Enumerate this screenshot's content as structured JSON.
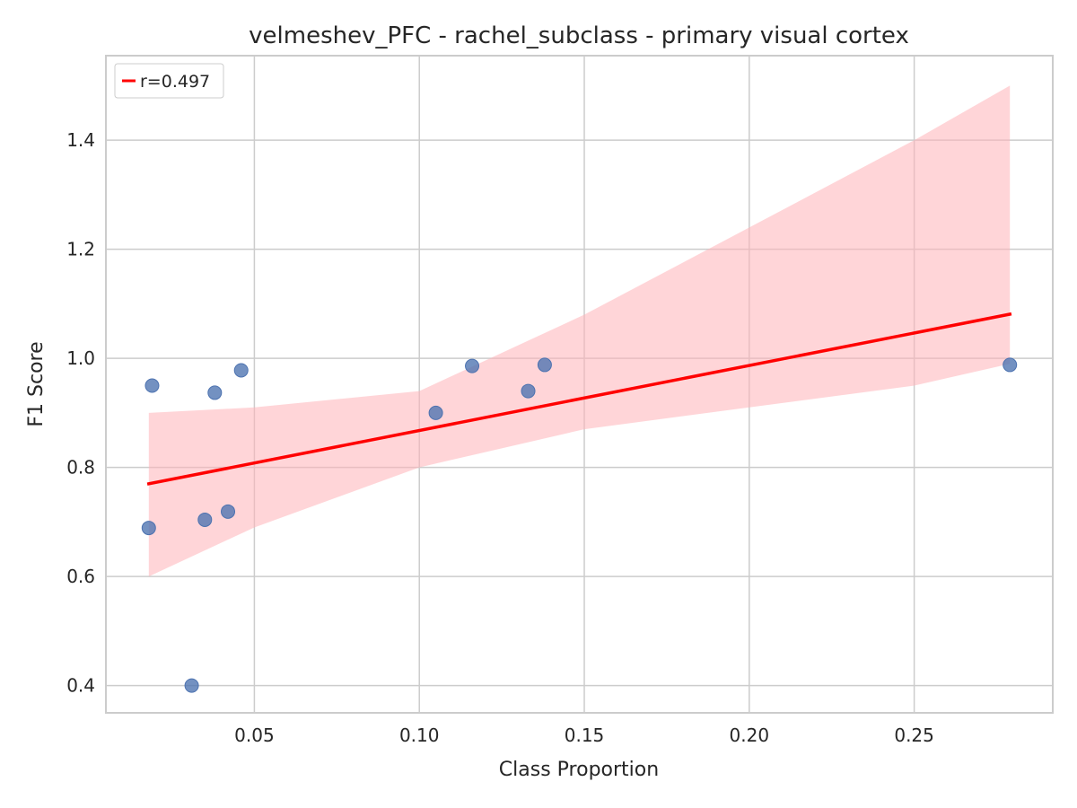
{
  "chart_data": {
    "type": "scatter",
    "title": "velmeshev_PFC - rachel_subclass - primary visual cortex",
    "xlabel": "Class Proportion",
    "ylabel": "F1 Score",
    "xlim": [
      0.005,
      0.292
    ],
    "ylim": [
      0.35,
      1.555
    ],
    "xticks": [
      0.05,
      0.1,
      0.15,
      0.2,
      0.25
    ],
    "xtick_labels": [
      "0.05",
      "0.10",
      "0.15",
      "0.20",
      "0.25"
    ],
    "yticks": [
      0.4,
      0.6,
      0.8,
      1.0,
      1.2,
      1.4
    ],
    "ytick_labels": [
      "0.4",
      "0.6",
      "0.8",
      "1.0",
      "1.2",
      "1.4"
    ],
    "grid": true,
    "points": [
      {
        "x": 0.019,
        "y": 0.95
      },
      {
        "x": 0.018,
        "y": 0.689
      },
      {
        "x": 0.031,
        "y": 0.4
      },
      {
        "x": 0.035,
        "y": 0.704
      },
      {
        "x": 0.038,
        "y": 0.937
      },
      {
        "x": 0.042,
        "y": 0.719
      },
      {
        "x": 0.046,
        "y": 0.978
      },
      {
        "x": 0.105,
        "y": 0.9
      },
      {
        "x": 0.116,
        "y": 0.986
      },
      {
        "x": 0.133,
        "y": 0.94
      },
      {
        "x": 0.138,
        "y": 0.988
      },
      {
        "x": 0.279,
        "y": 0.988
      }
    ],
    "regression": {
      "x": [
        0.018,
        0.279
      ],
      "y": [
        0.77,
        1.081
      ]
    },
    "confidence_band": {
      "x": [
        0.018,
        0.05,
        0.1,
        0.15,
        0.2,
        0.25,
        0.279
      ],
      "upper": [
        0.9,
        0.91,
        0.94,
        1.08,
        1.24,
        1.4,
        1.5
      ],
      "lower": [
        0.6,
        0.69,
        0.8,
        0.87,
        0.91,
        0.95,
        0.99
      ]
    },
    "legend": {
      "position": "top-left",
      "label": "r=0.497"
    },
    "colors": {
      "points": "#4c72b0",
      "regression": "#ff0000",
      "band": "#ffb3b8",
      "grid": "#cccccc",
      "axes": "#cccccc"
    }
  }
}
